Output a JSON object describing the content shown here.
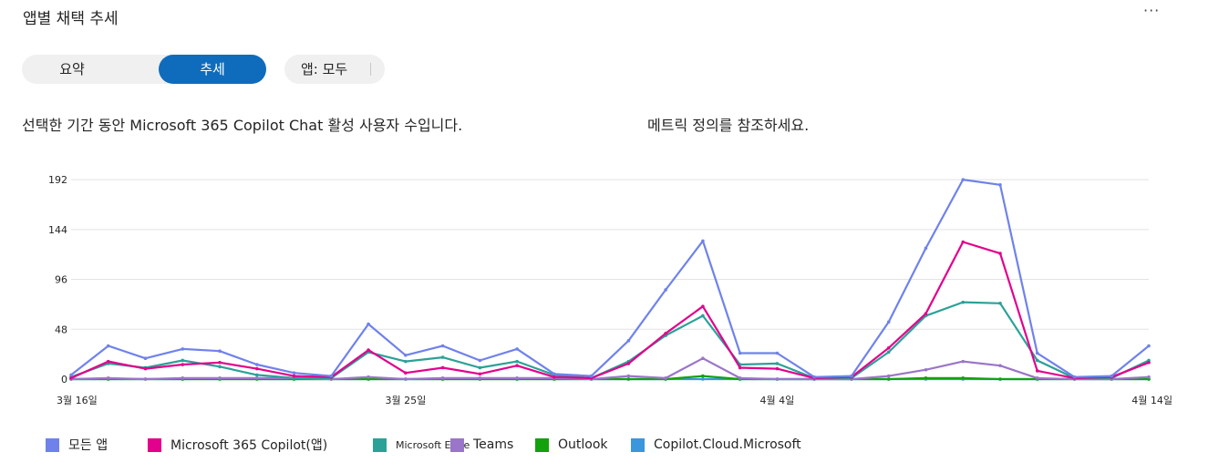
{
  "header": {
    "title": "앱별 채택 추세",
    "more_label": "···"
  },
  "toggle": {
    "summary_label": "요약",
    "trend_label": "추세"
  },
  "filter": {
    "label": "앱: 모두"
  },
  "description": "선택한 기간 동안 Microsoft 365 Copilot Chat 활성 사용자 수입니다.",
  "metric_link": "메트릭 정의를 참조하세요.",
  "colors": {
    "all": "#6f82eb",
    "m365": "#e3008c",
    "edge": "#2ba198",
    "teams": "#9b75c9",
    "outlook": "#13a10e",
    "cloud": "#3a96dd",
    "grid": "#e3e3e3"
  },
  "chart_data": {
    "type": "line",
    "x": [
      "3월 16일",
      "3월 17일",
      "3월 18일",
      "3월 19일",
      "3월 20일",
      "3월 21일",
      "3월 22일",
      "3월 23일",
      "3월 24일",
      "3월 25일",
      "3월 26일",
      "3월 27일",
      "3월 28일",
      "3월 29일",
      "3월 30일",
      "3월 31일",
      "4월 1일",
      "4월 2일",
      "4월 3일",
      "4월 4일",
      "4월 5일",
      "4월 6일",
      "4월 7일",
      "4월 8일",
      "4월 9일",
      "4월 10일",
      "4월 11일",
      "4월 12일",
      "4월 13일",
      "4월 14일"
    ],
    "x_tick_labels": [
      "3월 16일",
      "3월 25일",
      "4월 4일",
      "4월 14일"
    ],
    "x_tick_indices": [
      0,
      9,
      19,
      29
    ],
    "y_ticks": [
      0,
      48,
      96,
      144,
      192
    ],
    "ylim": [
      0,
      200
    ],
    "grid": true,
    "legend_position": "bottom",
    "series": [
      {
        "name": "모든 앱",
        "color_key": "all",
        "values": [
          4,
          32,
          20,
          29,
          27,
          14,
          6,
          3,
          53,
          23,
          32,
          18,
          29,
          5,
          3,
          37,
          86,
          133,
          25,
          25,
          2,
          3,
          55,
          126,
          192,
          187,
          25,
          2,
          3,
          32
        ]
      },
      {
        "name": "Microsoft 365 Copilot(앱)",
        "color_key": "m365",
        "values": [
          1,
          17,
          10,
          14,
          16,
          10,
          3,
          2,
          28,
          6,
          11,
          5,
          13,
          2,
          1,
          15,
          44,
          70,
          11,
          10,
          1,
          2,
          30,
          63,
          132,
          121,
          8,
          1,
          2,
          16
        ]
      },
      {
        "name": "Microsoft Edge",
        "color_key": "edge",
        "values": [
          2,
          15,
          11,
          18,
          12,
          4,
          1,
          1,
          26,
          17,
          21,
          11,
          17,
          4,
          1,
          17,
          42,
          61,
          14,
          15,
          1,
          1,
          26,
          61,
          74,
          73,
          18,
          1,
          1,
          18
        ]
      },
      {
        "name": "Teams",
        "color_key": "teams",
        "values": [
          0,
          1,
          0,
          1,
          1,
          1,
          1,
          0,
          2,
          0,
          1,
          1,
          1,
          1,
          0,
          3,
          1,
          20,
          1,
          0,
          0,
          0,
          3,
          9,
          17,
          13,
          1,
          0,
          0,
          2
        ]
      },
      {
        "name": "Outlook",
        "color_key": "outlook",
        "values": [
          0,
          0,
          0,
          0,
          0,
          0,
          0,
          0,
          0,
          0,
          0,
          0,
          0,
          0,
          0,
          0,
          0,
          3,
          0,
          0,
          0,
          0,
          0,
          1,
          1,
          0,
          0,
          0,
          0,
          0
        ]
      },
      {
        "name": "Copilot.Cloud.Microsoft",
        "color_key": "cloud",
        "values": [
          0,
          0,
          0,
          0,
          0,
          0,
          0,
          0,
          0,
          0,
          0,
          0,
          0,
          0,
          0,
          0,
          0,
          0,
          0,
          0,
          0,
          0,
          0,
          0,
          0,
          0,
          0,
          0,
          0,
          0
        ]
      }
    ]
  },
  "legend": [
    {
      "label": "모든 앱",
      "color_key": "all"
    },
    {
      "label": "Microsoft 365 Copilot(앱)",
      "color_key": "m365"
    },
    {
      "label": "Microsoft Edge",
      "color_key": "edge"
    },
    {
      "label": "Teams",
      "color_key": "teams"
    },
    {
      "label": "Outlook",
      "color_key": "outlook"
    },
    {
      "label": "Copilot.Cloud.Microsoft",
      "color_key": "cloud"
    }
  ]
}
